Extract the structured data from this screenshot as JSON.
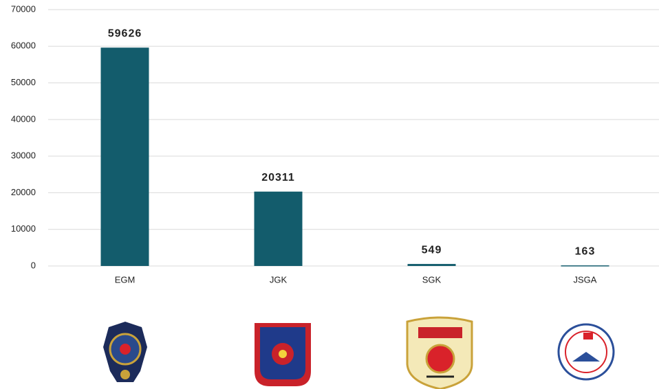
{
  "chart_data": {
    "type": "bar",
    "categories": [
      "EGM",
      "JGK",
      "SGK",
      "JSGA"
    ],
    "values": [
      59626,
      20311,
      549,
      163
    ],
    "color": "#135c6c",
    "ylim": [
      0,
      70000
    ],
    "yticks": [
      0,
      10000,
      20000,
      30000,
      40000,
      50000,
      60000,
      70000
    ],
    "grid": true
  }
}
